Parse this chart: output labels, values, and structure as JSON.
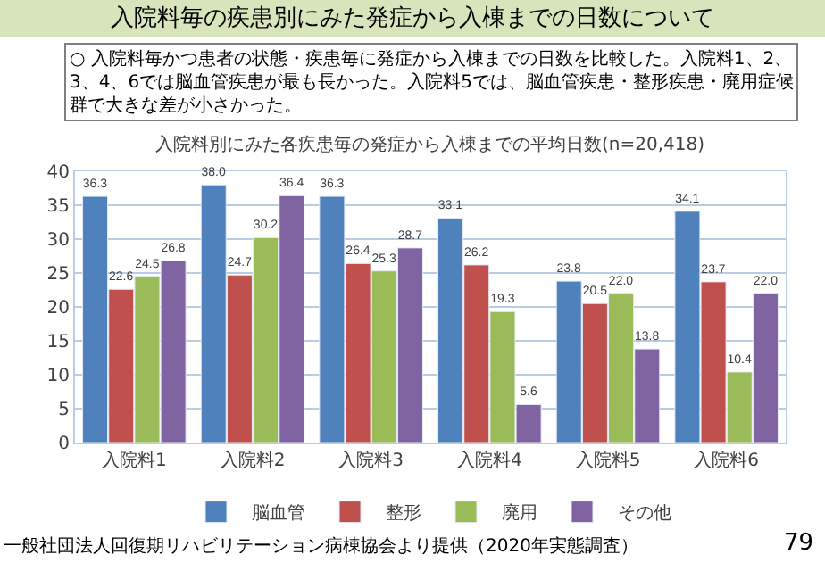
{
  "chart_data": {
    "type": "bar",
    "title": "入院料毎の疾患別にみた発症から入棟までの日数について",
    "subtitle": "○ 入院料毎かつ患者の状態・疾患毎に発症から入棟までの日数を比較した。入院料1、2、3、4、6では脳血管疾患が最も長かった。入院料5では、脳血管疾患・整形疾患・廃用症候群で大きな差が小さかった。",
    "annotations": [
      "入院料別にみた各疾患毎の発症から入棟までの平均日数(n=20,418)",
      "一般社団法人回復期リハビリテーション病棟協会より提供（2020年実態調査）",
      "79"
    ],
    "categories": [
      "入院料1",
      "入院料2",
      "入院料3",
      "入院料4",
      "入院料5",
      "入院料6"
    ],
    "series": [
      {
        "name": "脳血管",
        "color": "#4f81bd",
        "values": [
          36.3,
          38.0,
          36.3,
          33.1,
          23.8,
          34.1
        ],
        "value_labels": [
          "36.3",
          "38.0",
          "36.3",
          "33.1",
          "23.8",
          "34.1"
        ]
      },
      {
        "name": "整形",
        "color": "#c0504d",
        "values": [
          22.6,
          24.7,
          26.4,
          26.2,
          20.5,
          23.7
        ],
        "value_labels": [
          "22.6",
          "24.7",
          "26.4",
          "26.2",
          "20.5",
          "23.7"
        ]
      },
      {
        "name": "廃用",
        "color": "#9bbb59",
        "values": [
          24.5,
          30.2,
          25.3,
          19.3,
          22.0,
          10.4
        ],
        "value_labels": [
          "24.5",
          "30.2",
          "25.3",
          "19.3",
          "22.0",
          "10.4"
        ]
      },
      {
        "name": "その他",
        "color": "#8064a2",
        "values": [
          26.8,
          36.4,
          28.7,
          5.6,
          13.8,
          22.0
        ],
        "value_labels": [
          "26.8",
          "36.4",
          "28.7",
          "5.6",
          "13.8",
          "22.0"
        ]
      }
    ],
    "ylim": [
      0,
      40
    ],
    "yticks": [
      0,
      5,
      10,
      15,
      20,
      25,
      30,
      35,
      40
    ],
    "grid": "y",
    "legend": "bottom"
  }
}
